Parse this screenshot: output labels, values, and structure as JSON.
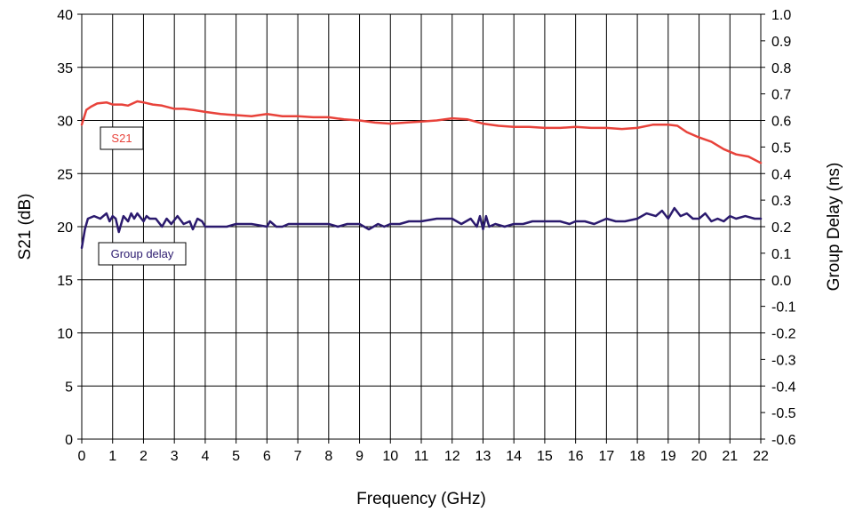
{
  "chart_data": {
    "type": "line",
    "title": "",
    "xlabel": "Frequency (GHz)",
    "ylabel_left": "S21 (dB)",
    "ylabel_right": "Group Delay (ns)",
    "xlim": [
      0,
      22
    ],
    "ylim_left": [
      0,
      40
    ],
    "ylim_right": [
      -0.6,
      1.0
    ],
    "x_ticks": [
      "0",
      "1",
      "2",
      "3",
      "4",
      "5",
      "6",
      "7",
      "8",
      "9",
      "10",
      "11",
      "12",
      "13",
      "14",
      "15",
      "16",
      "17",
      "18",
      "19",
      "20",
      "21",
      "22"
    ],
    "y_left_ticks": [
      "0",
      "5",
      "10",
      "15",
      "20",
      "25",
      "30",
      "35",
      "40"
    ],
    "y_right_ticks": [
      "-0.6",
      "-0.5",
      "-0.4",
      "-0.3",
      "-0.2",
      "-0.1",
      "0.0",
      "0.1",
      "0.2",
      "0.3",
      "0.4",
      "0.5",
      "0.6",
      "0.7",
      "0.8",
      "0.9",
      "1.0"
    ],
    "grid": true,
    "series": [
      {
        "name": "S21",
        "axis": "left",
        "color": "#e8423a",
        "x": [
          0,
          0.15,
          0.3,
          0.5,
          0.8,
          1.0,
          1.3,
          1.5,
          1.8,
          2.0,
          2.3,
          2.6,
          3.0,
          3.3,
          3.6,
          4.0,
          4.5,
          5.0,
          5.5,
          6.0,
          6.5,
          7.0,
          7.5,
          8.0,
          8.5,
          9.0,
          9.5,
          10.0,
          10.5,
          11.0,
          11.5,
          12.0,
          12.5,
          13.0,
          13.5,
          14.0,
          14.5,
          15.0,
          15.5,
          16.0,
          16.5,
          17.0,
          17.5,
          18.0,
          18.5,
          19.0,
          19.3,
          19.6,
          20.0,
          20.4,
          20.8,
          21.2,
          21.6,
          22.0
        ],
        "y": [
          29.6,
          31.0,
          31.3,
          31.6,
          31.7,
          31.5,
          31.5,
          31.4,
          31.8,
          31.7,
          31.5,
          31.4,
          31.1,
          31.1,
          31.0,
          30.8,
          30.6,
          30.5,
          30.4,
          30.6,
          30.4,
          30.4,
          30.3,
          30.3,
          30.1,
          30.0,
          29.8,
          29.7,
          29.8,
          29.9,
          30.0,
          30.2,
          30.1,
          29.7,
          29.5,
          29.4,
          29.4,
          29.3,
          29.3,
          29.4,
          29.3,
          29.3,
          29.2,
          29.3,
          29.6,
          29.6,
          29.5,
          28.9,
          28.4,
          28.0,
          27.3,
          26.8,
          26.6,
          26.0
        ]
      },
      {
        "name": "Group delay",
        "axis": "right",
        "color": "#2b1a6e",
        "x": [
          0,
          0.1,
          0.2,
          0.4,
          0.6,
          0.8,
          0.9,
          1.0,
          1.1,
          1.2,
          1.35,
          1.5,
          1.6,
          1.7,
          1.8,
          2.0,
          2.1,
          2.2,
          2.4,
          2.6,
          2.75,
          2.9,
          3.1,
          3.3,
          3.5,
          3.6,
          3.75,
          3.9,
          4.0,
          4.2,
          4.4,
          4.7,
          5.0,
          5.5,
          6.0,
          6.1,
          6.3,
          6.5,
          6.7,
          7.0,
          7.5,
          8.0,
          8.3,
          8.6,
          9.0,
          9.3,
          9.6,
          9.8,
          10.0,
          10.3,
          10.6,
          11.0,
          11.5,
          12.0,
          12.3,
          12.6,
          12.8,
          12.9,
          13.0,
          13.1,
          13.2,
          13.4,
          13.7,
          14.0,
          14.3,
          14.6,
          15.0,
          15.5,
          15.8,
          16.0,
          16.3,
          16.6,
          17.0,
          17.3,
          17.6,
          18.0,
          18.3,
          18.6,
          18.8,
          19.0,
          19.2,
          19.4,
          19.6,
          19.8,
          20.0,
          20.2,
          20.4,
          20.6,
          20.8,
          21.0,
          21.2,
          21.5,
          21.8,
          22.0
        ],
        "y": [
          0.12,
          0.19,
          0.23,
          0.24,
          0.23,
          0.25,
          0.22,
          0.24,
          0.23,
          0.18,
          0.24,
          0.22,
          0.25,
          0.23,
          0.25,
          0.22,
          0.24,
          0.23,
          0.23,
          0.2,
          0.23,
          0.21,
          0.24,
          0.21,
          0.22,
          0.19,
          0.23,
          0.22,
          0.2,
          0.2,
          0.2,
          0.2,
          0.21,
          0.21,
          0.2,
          0.22,
          0.2,
          0.2,
          0.21,
          0.21,
          0.21,
          0.21,
          0.2,
          0.21,
          0.21,
          0.19,
          0.21,
          0.2,
          0.21,
          0.21,
          0.22,
          0.22,
          0.23,
          0.23,
          0.21,
          0.23,
          0.2,
          0.24,
          0.19,
          0.24,
          0.2,
          0.21,
          0.2,
          0.21,
          0.21,
          0.22,
          0.22,
          0.22,
          0.21,
          0.22,
          0.22,
          0.21,
          0.23,
          0.22,
          0.22,
          0.23,
          0.25,
          0.24,
          0.26,
          0.23,
          0.27,
          0.24,
          0.25,
          0.23,
          0.23,
          0.25,
          0.22,
          0.23,
          0.22,
          0.24,
          0.23,
          0.24,
          0.23,
          0.23
        ]
      }
    ],
    "annotations": [
      {
        "text": "S21",
        "series": "S21"
      },
      {
        "text": "Group delay",
        "series": "Group delay"
      }
    ]
  }
}
